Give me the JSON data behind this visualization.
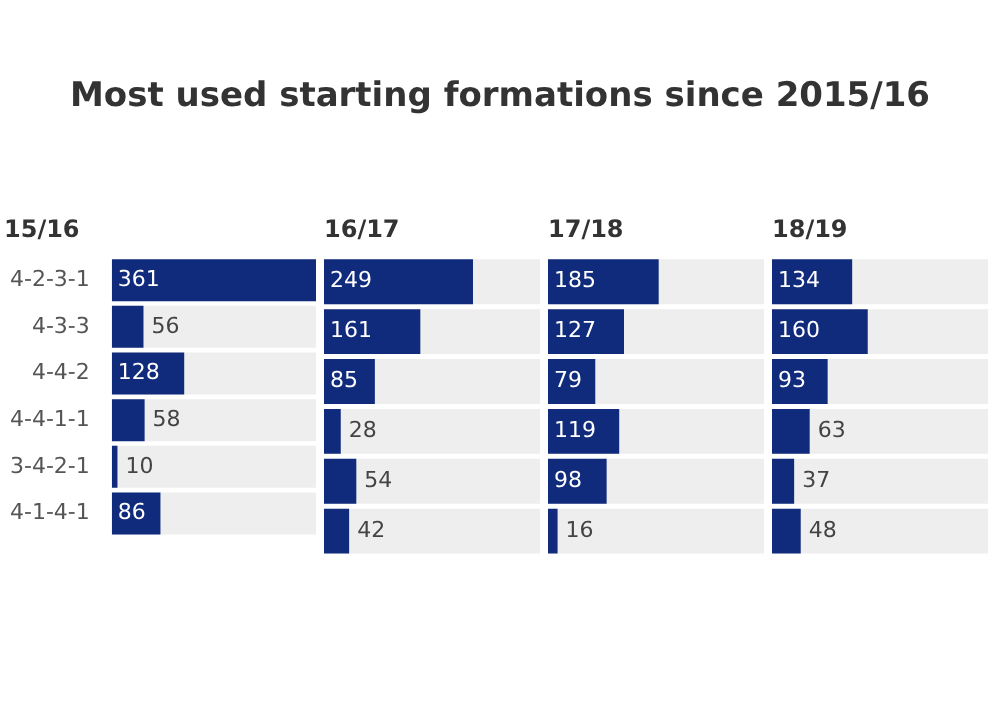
{
  "chart_data": [
    {
      "type": "other",
      "title": "Most used starting formations since 2015/16"
    },
    {
      "type": "bar",
      "orientation": "horizontal",
      "title": "15/16",
      "categories": [
        "4-2-3-1",
        "4-3-3",
        "4-4-2",
        "4-4-1-1",
        "3-4-2-1",
        "4-1-4-1"
      ],
      "values": [
        361,
        56,
        128,
        58,
        10,
        86
      ],
      "color": "#102a7c",
      "xlim": [
        0,
        361
      ],
      "data_labels": true,
      "tick_labels": "y"
    },
    {
      "type": "bar",
      "orientation": "horizontal",
      "title": "16/17",
      "categories": [
        null,
        null,
        null,
        null,
        null,
        null
      ],
      "values": [
        249,
        161,
        85,
        28,
        54,
        42
      ],
      "color": "#102a7c",
      "xlim": [
        0,
        361
      ],
      "data_labels": true,
      "tick_labels": false
    },
    {
      "type": "bar",
      "orientation": "horizontal",
      "title": "17/18",
      "categories": [
        null,
        null,
        null,
        null,
        null,
        null
      ],
      "values": [
        185,
        127,
        79,
        119,
        98,
        16
      ],
      "color": "#102a7c",
      "xlim": [
        0,
        361
      ],
      "data_labels": true,
      "tick_labels": false
    },
    {
      "type": "bar",
      "orientation": "horizontal",
      "title": "18/19",
      "categories": [
        null,
        null,
        null,
        null,
        null,
        null
      ],
      "values": [
        134,
        160,
        93,
        63,
        37,
        48
      ],
      "color": "#102a7c",
      "xlim": [
        0,
        361
      ],
      "data_labels": true,
      "tick_labels": false
    }
  ]
}
